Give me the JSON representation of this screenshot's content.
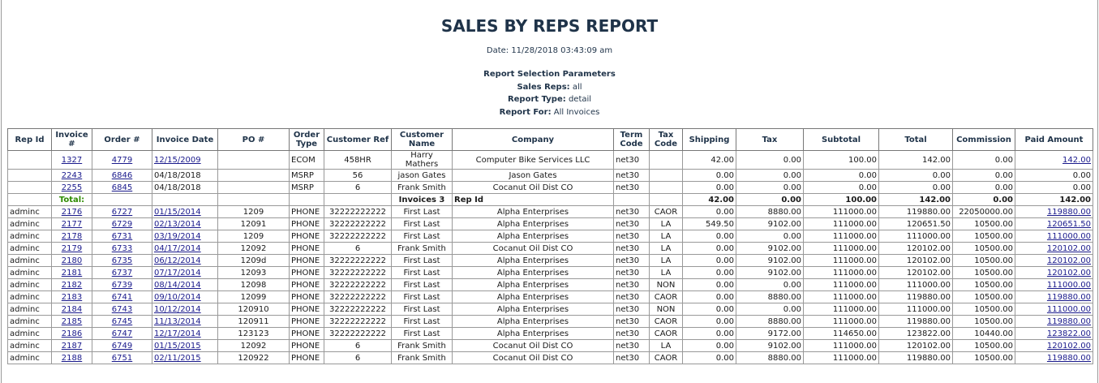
{
  "header": {
    "title": "SALES BY REPS REPORT",
    "date": "Date: 11/28/2018 03:43:09 am"
  },
  "params": {
    "heading": "Report Selection Parameters",
    "items": [
      {
        "label": "Sales Reps:",
        "value": "all"
      },
      {
        "label": "Report Type:",
        "value": "detail"
      },
      {
        "label": "Report For:",
        "value": "All Invoices"
      }
    ]
  },
  "table": {
    "columns": [
      "Rep Id",
      "Invoice #",
      "Order #",
      "Invoice Date",
      "PO #",
      "Order Type",
      "Customer Ref",
      "Customer Name",
      "Company",
      "Term Code",
      "Tax Code",
      "Shipping",
      "Tax",
      "Subtotal",
      "Total",
      "Commission",
      "Paid Amount"
    ],
    "rows": [
      [
        null,
        "1327",
        "4779",
        "12/15/2009",
        null,
        "ECOM",
        "458HR",
        "Harry Mathers",
        "Computer Bike Services LLC",
        "net30",
        null,
        "42.00",
        "0.00",
        "100.00",
        "142.00",
        "0.00",
        "142.00"
      ],
      [
        null,
        "2243",
        "6846",
        "04/18/2018",
        null,
        "MSRP",
        "56",
        "jason Gates",
        "Jason Gates",
        "net30",
        null,
        "0.00",
        "0.00",
        "0.00",
        "0.00",
        "0.00",
        "0.00"
      ],
      [
        null,
        "2255",
        "6845",
        "04/18/2018",
        null,
        "MSRP",
        "6",
        "Frank Smith",
        "Cocanut Oil Dist CO",
        "net30",
        null,
        "0.00",
        "0.00",
        "0.00",
        "0.00",
        "0.00",
        "0.00"
      ],
      [
        null,
        "Total:",
        null,
        null,
        null,
        null,
        null,
        "Invoices 3",
        "Rep Id",
        null,
        null,
        "42.00",
        "0.00",
        "100.00",
        "142.00",
        "0.00",
        "142.00"
      ],
      [
        "adminc",
        "2176",
        "6727",
        "01/15/2014",
        "1209",
        "PHONE",
        "32222222222",
        "First Last",
        "Alpha Enterprises",
        "net30",
        "CAOR",
        "0.00",
        "8880.00",
        "111000.00",
        "119880.00",
        "22050000.00",
        "119880.00"
      ],
      [
        "adminc",
        "2177",
        "6729",
        "02/13/2014",
        "12091",
        "PHONE",
        "32222222222",
        "First Last",
        "Alpha Enterprises",
        "net30",
        "LA",
        "549.50",
        "9102.00",
        "111000.00",
        "120651.50",
        "10500.00",
        "120651.50"
      ],
      [
        "adminc",
        "2178",
        "6731",
        "03/19/2014",
        "1209",
        "PHONE",
        "32222222222",
        "First Last",
        "Alpha Enterprises",
        "net30",
        "LA",
        "0.00",
        "0.00",
        "111000.00",
        "111000.00",
        "10500.00",
        "111000.00"
      ],
      [
        "adminc",
        "2179",
        "6733",
        "04/17/2014",
        "12092",
        "PHONE",
        "6",
        "Frank Smith",
        "Cocanut Oil Dist CO",
        "net30",
        "LA",
        "0.00",
        "9102.00",
        "111000.00",
        "120102.00",
        "10500.00",
        "120102.00"
      ],
      [
        "adminc",
        "2180",
        "6735",
        "06/12/2014",
        "1209d",
        "PHONE",
        "32222222222",
        "First Last",
        "Alpha Enterprises",
        "net30",
        "LA",
        "0.00",
        "9102.00",
        "111000.00",
        "120102.00",
        "10500.00",
        "120102.00"
      ],
      [
        "adminc",
        "2181",
        "6737",
        "07/17/2014",
        "12093",
        "PHONE",
        "32222222222",
        "First Last",
        "Alpha Enterprises",
        "net30",
        "LA",
        "0.00",
        "9102.00",
        "111000.00",
        "120102.00",
        "10500.00",
        "120102.00"
      ],
      [
        "adminc",
        "2182",
        "6739",
        "08/14/2014",
        "12098",
        "PHONE",
        "32222222222",
        "First Last",
        "Alpha Enterprises",
        "net30",
        "NON",
        "0.00",
        "0.00",
        "111000.00",
        "111000.00",
        "10500.00",
        "111000.00"
      ],
      [
        "adminc",
        "2183",
        "6741",
        "09/10/2014",
        "12099",
        "PHONE",
        "32222222222",
        "First Last",
        "Alpha Enterprises",
        "net30",
        "CAOR",
        "0.00",
        "8880.00",
        "111000.00",
        "119880.00",
        "10500.00",
        "119880.00"
      ],
      [
        "adminc",
        "2184",
        "6743",
        "10/12/2014",
        "120910",
        "PHONE",
        "32222222222",
        "First Last",
        "Alpha Enterprises",
        "net30",
        "NON",
        "0.00",
        "0.00",
        "111000.00",
        "111000.00",
        "10500.00",
        "111000.00"
      ],
      [
        "adminc",
        "2185",
        "6745",
        "11/13/2014",
        "120911",
        "PHONE",
        "32222222222",
        "First Last",
        "Alpha Enterprises",
        "net30",
        "CAOR",
        "0.00",
        "8880.00",
        "111000.00",
        "119880.00",
        "10500.00",
        "119880.00"
      ],
      [
        "adminc",
        "2186",
        "6747",
        "12/17/2014",
        "123123",
        "PHONE",
        "32222222222",
        "First Last",
        "Alpha Enterprises",
        "net30",
        "CAOR",
        "0.00",
        "9172.00",
        "114650.00",
        "123822.00",
        "10440.00",
        "123822.00"
      ],
      [
        "adminc",
        "2187",
        "6749",
        "01/15/2015",
        "12092",
        "PHONE",
        "6",
        "Frank Smith",
        "Cocanut Oil Dist CO",
        "net30",
        "LA",
        "0.00",
        "9102.00",
        "111000.00",
        "120102.00",
        "10500.00",
        "120102.00"
      ],
      [
        "adminc",
        "2188",
        "6751",
        "02/11/2015",
        "120922",
        "PHONE",
        "6",
        "Frank Smith",
        "Cocanut Oil Dist CO",
        "net30",
        "CAOR",
        "0.00",
        "8880.00",
        "111000.00",
        "119880.00",
        "10500.00",
        "119880.00"
      ]
    ]
  }
}
